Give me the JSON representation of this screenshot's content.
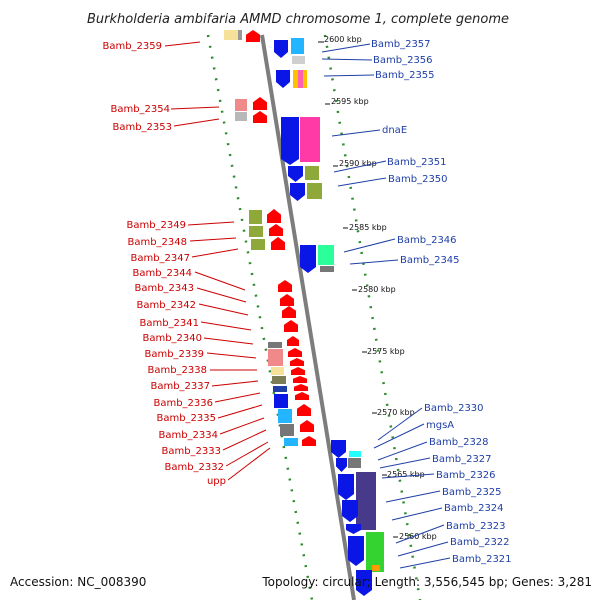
{
  "title": "Burkholderia ambifaria AMMD chromosome 1, complete genome",
  "footer": {
    "accession": "Accession: NC_008390",
    "topology": "Topology: circular; Length: 3,556,545 bp; Genes: 3,281"
  },
  "colors": {
    "backbone": "#7d7d7d",
    "dots": "#2e8b2e",
    "left_label": "#cc0000",
    "right_label": "#1f3fa6",
    "red_gene": "#ff0000",
    "blue_gene": "#0a16e6"
  },
  "ticks": [
    "2600 kbp",
    "2595 kbp",
    "2590 kbp",
    "2585 kbp",
    "2580 kbp",
    "2575 kbp",
    "2570 kbp",
    "2565 kbp",
    "2560 kbp"
  ],
  "left_labels": [
    "Bamb_2359",
    "Bamb_2354",
    "Bamb_2353",
    "Bamb_2349",
    "Bamb_2348",
    "Bamb_2347",
    "Bamb_2344",
    "Bamb_2343",
    "Bamb_2342",
    "Bamb_2341",
    "Bamb_2340",
    "Bamb_2339",
    "Bamb_2338",
    "Bamb_2337",
    "Bamb_2336",
    "Bamb_2335",
    "Bamb_2334",
    "Bamb_2333",
    "Bamb_2332",
    "upp"
  ],
  "right_labels": [
    "Bamb_2357",
    "Bamb_2356",
    "Bamb_2355",
    "dnaE",
    "Bamb_2351",
    "Bamb_2350",
    "Bamb_2346",
    "Bamb_2345",
    "Bamb_2330",
    "mgsA",
    "Bamb_2328",
    "Bamb_2327",
    "Bamb_2326",
    "Bamb_2325",
    "Bamb_2324",
    "Bamb_2323",
    "Bamb_2322",
    "Bamb_2321"
  ]
}
